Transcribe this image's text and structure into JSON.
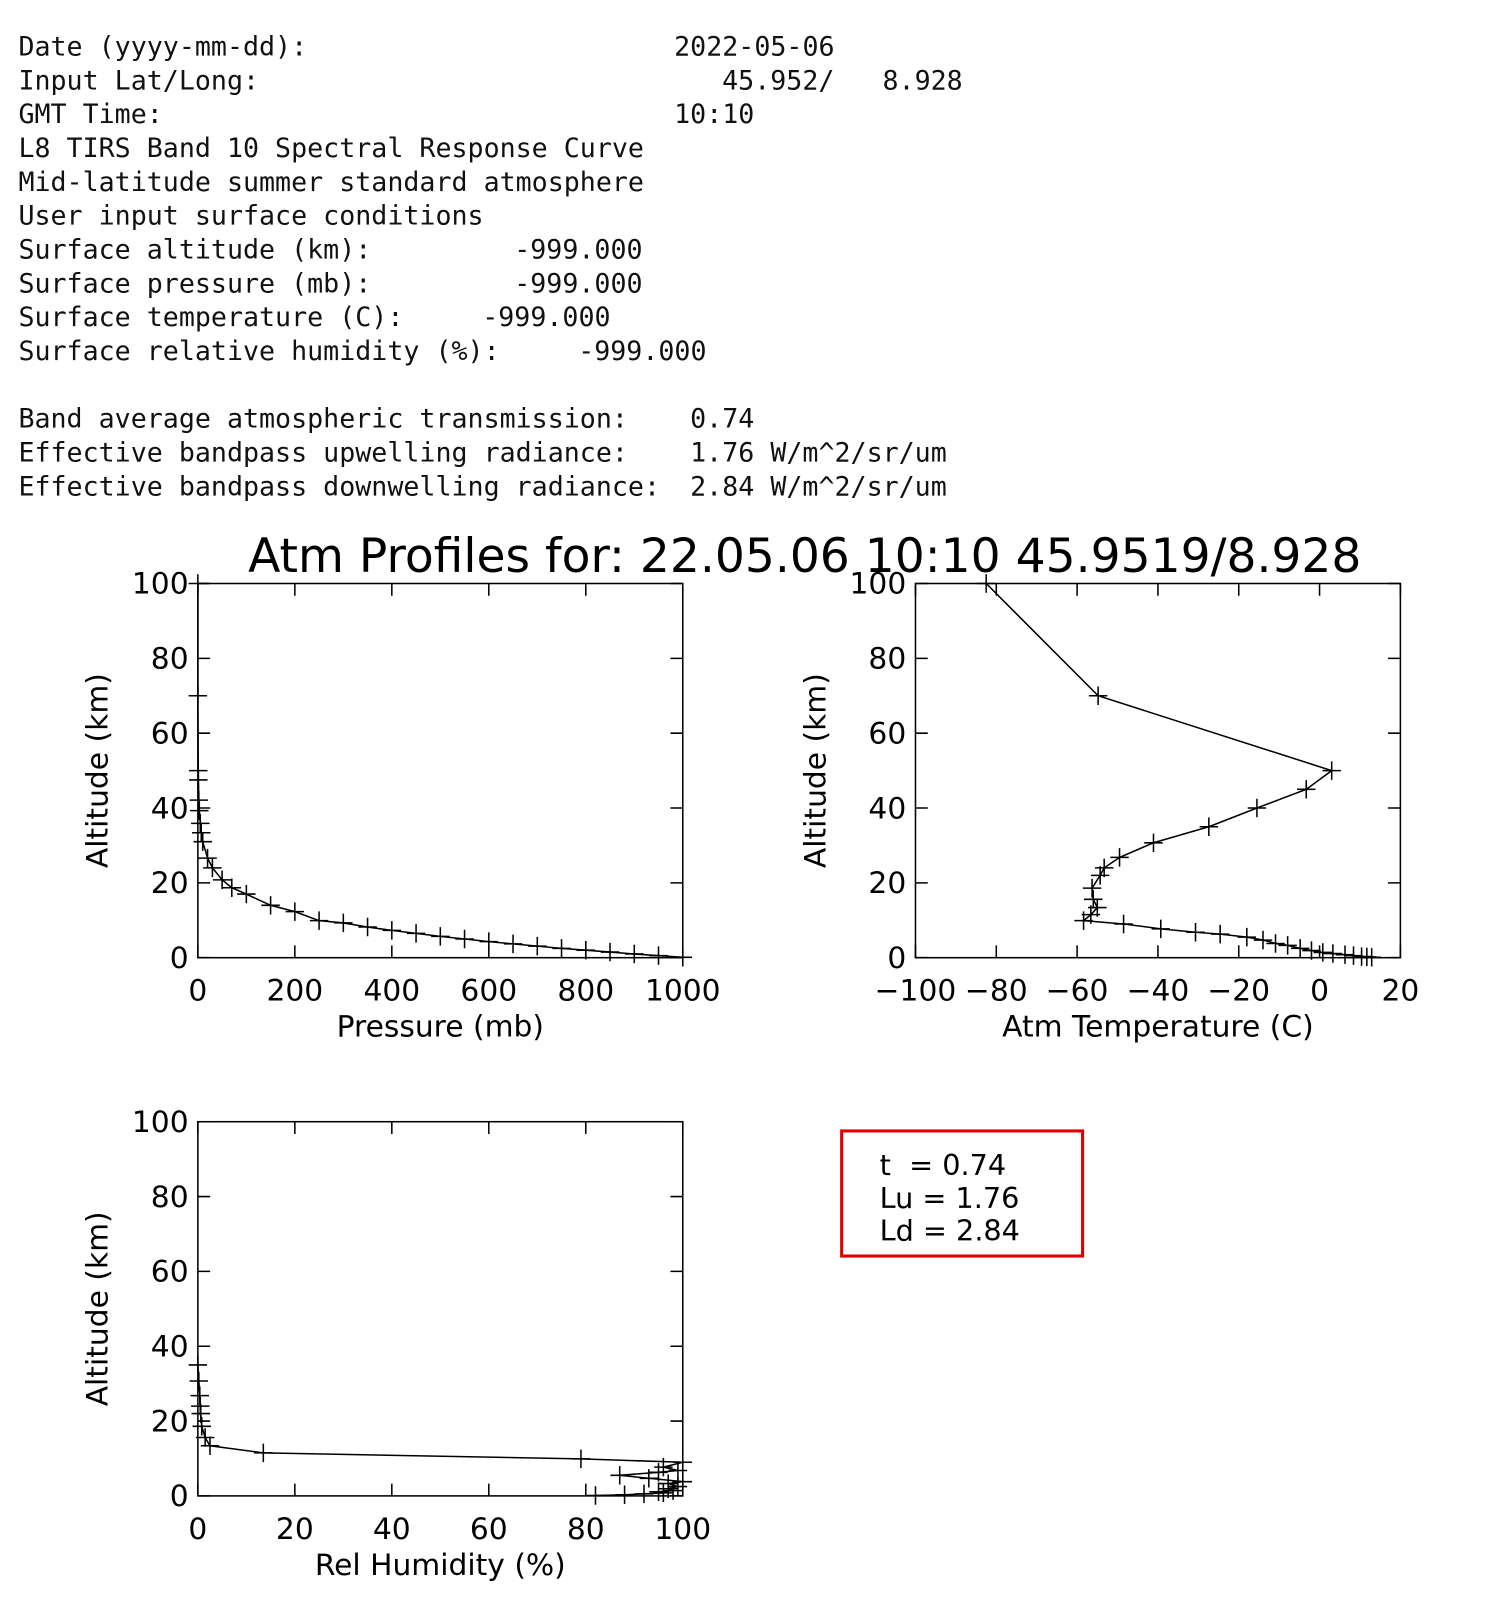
{
  "report": {
    "lines": [
      {
        "label": "Date (yyyy-mm-dd):",
        "value": "2022-05-06"
      },
      {
        "label": "Input Lat/Long:",
        "value": "45.952/   8.928"
      },
      {
        "label": "GMT Time:",
        "value": "10:10"
      },
      {
        "label": "L8 TIRS Band 10 Spectral Response Curve"
      },
      {
        "label": "Mid-latitude summer standard atmosphere"
      },
      {
        "label": "User input surface conditions"
      },
      {
        "label": "Surface altitude (km):",
        "value": "-999.000"
      },
      {
        "label": "Surface pressure (mb):",
        "value": "-999.000"
      },
      {
        "label": "Surface temperature (C):",
        "value": "-999.000"
      },
      {
        "label": "Surface relative humidity (%):",
        "value": "-999.000"
      },
      {
        "label": "Band average atmospheric transmission:",
        "value": "0.74"
      },
      {
        "label": "Effective bandpass upwelling radiance:",
        "value": "1.76 W/m^2/sr/um"
      },
      {
        "label": "Effective bandpass downwelling radiance:",
        "value": "2.84 W/m^2/sr/um"
      }
    ]
  },
  "figure_title": "Atm Profiles for: 22.05.06 10:10 45.9519/8.928",
  "chart_data": [
    {
      "type": "line",
      "x_label": "Pressure (mb)",
      "y_label": "Altitude (km)",
      "color": "#000000",
      "marker": "+",
      "x": [
        1000,
        950,
        900,
        850,
        800,
        750,
        700,
        650,
        600,
        550,
        500,
        450,
        400,
        350,
        300,
        250,
        200,
        150,
        100,
        70,
        50,
        30,
        20,
        10,
        7,
        5,
        3,
        2,
        1,
        0.8,
        0.05,
        0.0003
      ],
      "values": [
        0.1,
        0.55,
        1.0,
        1.5,
        2.0,
        2.5,
        3.1,
        3.7,
        4.3,
        5.0,
        5.7,
        6.5,
        7.3,
        8.2,
        9.3,
        9.9,
        12.3,
        14.0,
        17.0,
        18.7,
        20.8,
        24.0,
        26.6,
        31.0,
        33.4,
        35.9,
        39.3,
        42.1,
        47.5,
        50,
        70,
        100
      ],
      "xlim": [
        0,
        1000
      ],
      "ylim": [
        0,
        100
      ],
      "xticks": [
        0,
        200,
        400,
        600,
        800,
        1000
      ],
      "yticks": [
        0,
        20,
        40,
        60,
        80,
        100
      ]
    },
    {
      "type": "line",
      "x_label": "Atm Temperature (C)",
      "y_label": "Altitude (km)",
      "color": "#000000",
      "marker": "+",
      "x": [
        12.9,
        11.7,
        10.4,
        8.4,
        6.3,
        3.3,
        0.8,
        -2,
        -4.8,
        -7.9,
        -10.9,
        -14,
        -18,
        -24.6,
        -30.7,
        -39.3,
        -48.5,
        -58.4,
        -56.6,
        -55,
        -56,
        -56.3,
        -54.3,
        -53.3,
        -49.5,
        -41.1,
        -27.4,
        -15.5,
        -3.3,
        3,
        -54.8,
        -82.5
      ],
      "values": [
        0.1,
        0.2,
        0.3,
        0.55,
        0.8,
        1.1,
        1.4,
        1.9,
        2.5,
        3.3,
        3.8,
        4.7,
        5.5,
        6.3,
        6.8,
        7.7,
        9.0,
        9.9,
        11.5,
        13.4,
        15.6,
        18.6,
        22,
        24,
        26.8,
        30.7,
        35,
        40,
        45,
        50,
        70,
        100
      ],
      "xlim": [
        -100,
        20
      ],
      "ylim": [
        0,
        100
      ],
      "xticks": [
        {
          "value": -100,
          "label": "−100"
        },
        {
          "value": -80,
          "label": "−80"
        },
        {
          "value": -60,
          "label": "−60"
        },
        {
          "value": -40,
          "label": "−40"
        },
        {
          "value": -20,
          "label": "−20"
        },
        0,
        20
      ],
      "yticks": [
        0,
        20,
        40,
        60,
        80,
        100
      ]
    },
    {
      "type": "line",
      "x_label": "Rel Humidity (%)",
      "y_label": "Altitude (km)",
      "color": "#000000",
      "marker": "+",
      "x": [
        82,
        88,
        92,
        96,
        95,
        98,
        97,
        99,
        97,
        100,
        93,
        87,
        95,
        99,
        96,
        100,
        79,
        13.5,
        2.5,
        1.5,
        0.8,
        0.6,
        0.5,
        0.4,
        0.2,
        0
      ],
      "values": [
        0.1,
        0.3,
        0.55,
        0.8,
        1.1,
        1.4,
        1.9,
        2.5,
        3.3,
        3.8,
        4.7,
        5.5,
        6.3,
        6.8,
        7.7,
        9.0,
        9.9,
        11.5,
        13.4,
        15.6,
        18.6,
        22,
        24,
        26.8,
        30.7,
        35
      ],
      "xlim": [
        0,
        100
      ],
      "ylim": [
        0,
        100
      ],
      "xticks": [
        0,
        20,
        40,
        60,
        80,
        100
      ],
      "yticks": [
        0,
        20,
        40,
        60,
        80,
        100
      ]
    }
  ],
  "summary_box": {
    "lines": [
      "t  = 0.74",
      "Lu = 1.76",
      "Ld = 2.84"
    ]
  }
}
